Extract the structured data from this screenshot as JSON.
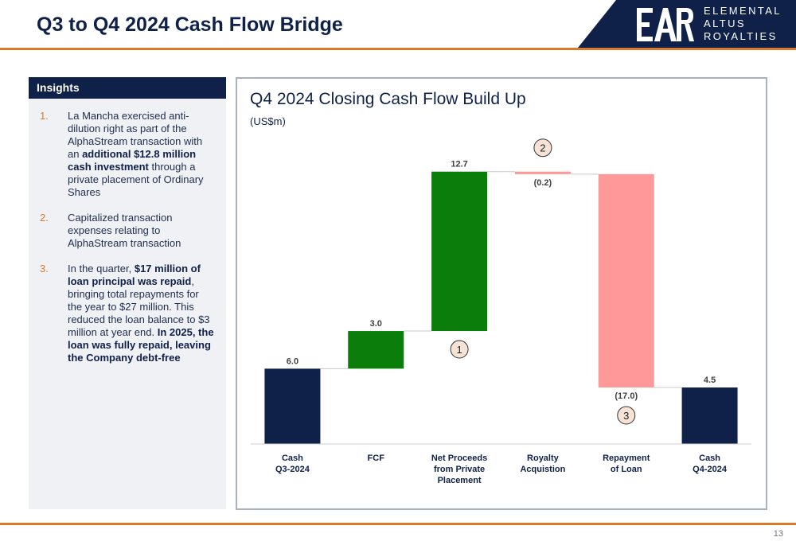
{
  "header": {
    "title": "Q3 to Q4 2024 Cash Flow Bridge"
  },
  "logo": {
    "line1": "ELEMENTAL",
    "line2": "ALTUS",
    "line3": "ROYALTIES",
    "color": "#0f2148"
  },
  "insights": {
    "heading": "Insights",
    "items": [
      {
        "num": "1.",
        "segments": [
          {
            "text": "La Mancha exercised anti-dilution right as part of the AlphaStream transaction with an ",
            "bold": false
          },
          {
            "text": "additional $12.8 million cash investment",
            "bold": true
          },
          {
            "text": " through a private placement of Ordinary Shares",
            "bold": false
          }
        ]
      },
      {
        "num": "2.",
        "segments": [
          {
            "text": "Capitalized transaction expenses relating to AlphaStream transaction",
            "bold": false
          }
        ]
      },
      {
        "num": "3.",
        "segments": [
          {
            "text": "In the quarter, ",
            "bold": false
          },
          {
            "text": "$17 million of loan principal was repaid",
            "bold": true
          },
          {
            "text": ", bringing total repayments for the year to $27 million. This reduced the loan balance to $3 million at year end. ",
            "bold": false
          },
          {
            "text": "In 2025, the loan was fully repaid, leaving the Company debt-free",
            "bold": true
          }
        ]
      }
    ]
  },
  "chart_data": {
    "type": "bar",
    "subtype": "waterfall",
    "title": "Q4 2024 Closing Cash Flow Build Up",
    "subtitle": "(US$m)",
    "categories": [
      "Cash\nQ3-2024",
      "FCF",
      "Net Proceeds\nfrom Private\nPlacement",
      "Royalty\nAcquistion",
      "Repayment\nof Loan",
      "Cash\nQ4-2024"
    ],
    "values": [
      6.0,
      3.0,
      12.7,
      -0.2,
      -17.0,
      4.5
    ],
    "value_labels": [
      "6.0",
      "3.0",
      "12.7",
      "(0.2)",
      "(17.0)",
      "4.5"
    ],
    "kinds": [
      "total",
      "delta",
      "delta",
      "delta",
      "delta",
      "total"
    ],
    "ylim": [
      0,
      22
    ],
    "grid": false,
    "colors": {
      "total": "#0f2148",
      "increase": "#0a7d0a",
      "decrease": "#ff9999",
      "connector": "#c8c8c8",
      "axis": "#cccccc"
    },
    "callouts": [
      {
        "label": "1",
        "category_index": 2
      },
      {
        "label": "2",
        "category_index": 3
      },
      {
        "label": "3",
        "category_index": 4
      }
    ]
  },
  "footer": {
    "page_number": "13"
  }
}
